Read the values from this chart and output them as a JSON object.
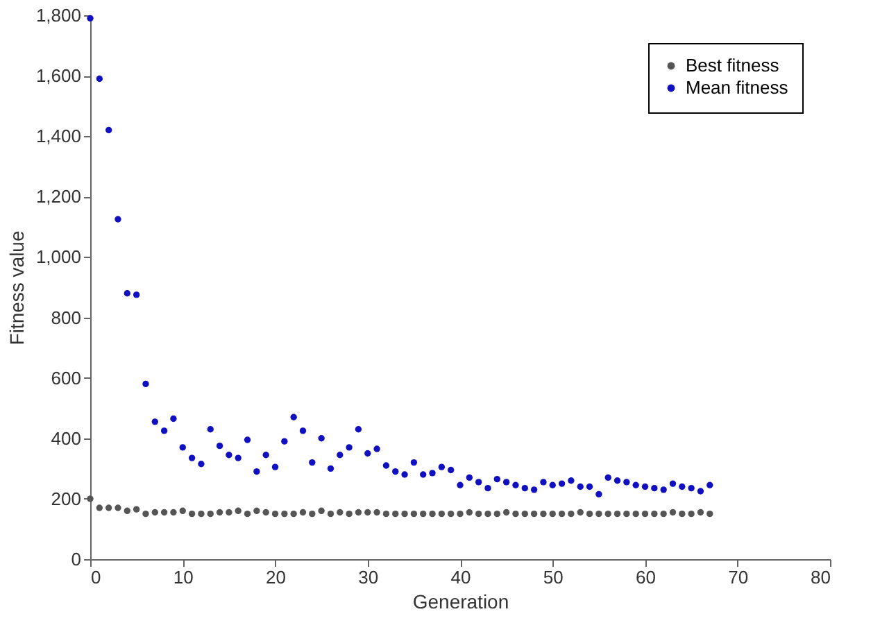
{
  "chart_data": {
    "type": "scatter",
    "xlabel": "Generation",
    "ylabel": "Fitness value",
    "x": [
      0,
      1,
      2,
      3,
      4,
      5,
      6,
      7,
      8,
      9,
      10,
      11,
      12,
      13,
      14,
      15,
      16,
      17,
      18,
      19,
      20,
      21,
      22,
      23,
      24,
      25,
      26,
      27,
      28,
      29,
      30,
      31,
      32,
      33,
      34,
      35,
      36,
      37,
      38,
      39,
      40,
      41,
      42,
      43,
      44,
      45,
      46,
      47,
      48,
      49,
      50,
      51,
      52,
      53,
      54,
      55,
      56,
      57,
      58,
      59,
      60,
      61,
      62,
      63,
      64,
      65,
      66,
      67
    ],
    "series": [
      {
        "name": "Best fitness",
        "color": "#555555",
        "values": [
          200,
          170,
          170,
          170,
          160,
          165,
          150,
          155,
          155,
          155,
          160,
          150,
          150,
          150,
          155,
          155,
          160,
          150,
          160,
          155,
          150,
          150,
          150,
          155,
          150,
          160,
          150,
          155,
          150,
          155,
          155,
          155,
          150,
          150,
          150,
          150,
          150,
          150,
          150,
          150,
          150,
          155,
          150,
          150,
          150,
          155,
          150,
          150,
          150,
          150,
          150,
          150,
          150,
          155,
          150,
          150,
          150,
          150,
          150,
          150,
          150,
          150,
          150,
          155,
          150,
          150,
          155,
          150
        ]
      },
      {
        "name": "Mean fitness",
        "color": "#1010c0",
        "values": [
          1790,
          1590,
          1420,
          1125,
          880,
          875,
          580,
          455,
          425,
          465,
          370,
          335,
          315,
          430,
          375,
          345,
          335,
          395,
          290,
          345,
          305,
          390,
          470,
          425,
          320,
          400,
          300,
          345,
          370,
          430,
          350,
          365,
          310,
          290,
          280,
          320,
          280,
          285,
          305,
          295,
          245,
          270,
          255,
          235,
          265,
          255,
          245,
          235,
          230,
          255,
          245,
          250,
          260,
          240,
          240,
          215,
          270,
          260,
          255,
          245,
          240,
          235,
          230,
          250,
          240,
          235,
          225,
          245
        ]
      }
    ],
    "xlim": [
      0,
      80
    ],
    "xticks": [
      0,
      10,
      20,
      30,
      40,
      50,
      60,
      70,
      80
    ],
    "ylim": [
      0,
      1800
    ],
    "yticks": [
      0,
      200,
      400,
      600,
      800,
      {
        "value": 1000,
        "label": "1,000"
      },
      {
        "value": 1200,
        "label": "1,200"
      },
      {
        "value": 1400,
        "label": "1,400"
      },
      {
        "value": 1600,
        "label": "1,600"
      },
      {
        "value": 1800,
        "label": "1,800"
      }
    ],
    "grid": false,
    "legend": "top right",
    "marker": "circle"
  }
}
